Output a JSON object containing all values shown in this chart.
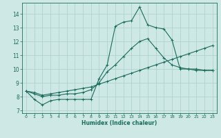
{
  "xlabel": "Humidex (Indice chaleur)",
  "xlim": [
    -0.5,
    23.5
  ],
  "ylim": [
    6.8,
    14.8
  ],
  "xticks": [
    0,
    1,
    2,
    3,
    4,
    5,
    6,
    7,
    8,
    9,
    10,
    11,
    12,
    13,
    14,
    15,
    16,
    17,
    18,
    19,
    20,
    21,
    22,
    23
  ],
  "yticks": [
    7,
    8,
    9,
    10,
    11,
    12,
    13,
    14
  ],
  "bg_color": "#cde8e5",
  "line_color": "#1a6b5a",
  "grid_color": "#aacfcc",
  "series": [
    [
      8.4,
      7.8,
      7.4,
      7.7,
      7.8,
      7.8,
      7.8,
      7.8,
      7.8,
      9.3,
      10.3,
      13.1,
      13.4,
      13.5,
      14.5,
      13.2,
      13.0,
      12.9,
      12.1,
      10.0,
      10.0,
      9.9,
      9.9,
      9.9
    ],
    [
      8.4,
      8.2,
      8.0,
      8.1,
      8.1,
      8.2,
      8.2,
      8.3,
      8.5,
      9.0,
      9.8,
      10.3,
      10.9,
      11.5,
      12.0,
      12.2,
      11.5,
      10.8,
      10.3,
      10.1,
      10.0,
      10.0,
      9.9,
      9.9
    ],
    [
      8.4,
      8.3,
      8.1,
      8.2,
      8.3,
      8.4,
      8.5,
      8.6,
      8.7,
      8.9,
      9.1,
      9.3,
      9.5,
      9.7,
      9.9,
      10.1,
      10.3,
      10.5,
      10.7,
      10.9,
      11.1,
      11.3,
      11.5,
      11.7
    ]
  ]
}
